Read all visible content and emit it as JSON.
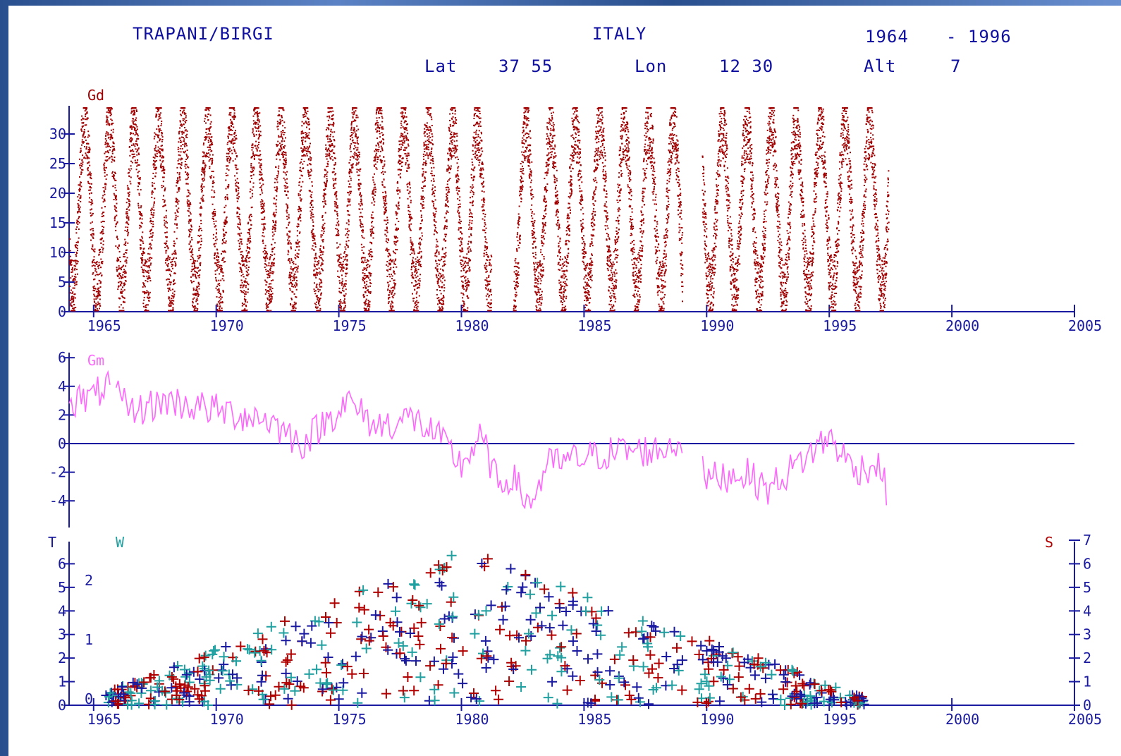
{
  "header": {
    "station": "TRAPANI/BIRGI",
    "country": "ITALY",
    "year_start": "1964",
    "year_end": "- 1996",
    "lat_label": "Lat",
    "lat_value": "37 55",
    "lon_label": "Lon",
    "lon_value": "12 30",
    "alt_label": "Alt",
    "alt_value": "7"
  },
  "colors": {
    "axis": "#1a1aa0",
    "gd": "#a00000",
    "gm": "#ff66ff",
    "t_blue": "#1a1aa0",
    "t_red": "#b00000",
    "t_teal": "#20a0a0"
  },
  "chart_data": [
    {
      "type": "scatter",
      "series": [
        {
          "name": "Gd"
        }
      ],
      "x_range": [
        1964,
        2005
      ],
      "ylim": [
        0,
        35
      ],
      "y_ticks": [
        0,
        5,
        10,
        15,
        20,
        25,
        30
      ],
      "x_ticks": [
        1965,
        1970,
        1975,
        1980,
        1985,
        1990,
        1995,
        2000,
        2005
      ],
      "data_years": [
        1964,
        1997.4
      ],
      "gaps": [
        [
          1981.2,
          1982.1
        ],
        [
          1989.0,
          1989.8
        ]
      ],
      "seasonal_min": 3,
      "seasonal_max": 32
    },
    {
      "type": "line",
      "series": [
        {
          "name": "Gm"
        }
      ],
      "x_range": [
        1964,
        2005
      ],
      "ylim": [
        -5,
        6.5
      ],
      "y_ticks": [
        -4,
        -2,
        0,
        2,
        4,
        6
      ],
      "anchors": [
        [
          1964.0,
          3.0
        ],
        [
          1965.0,
          3.2
        ],
        [
          1965.5,
          4.2
        ],
        [
          1966.5,
          2.2
        ],
        [
          1968.0,
          3.0
        ],
        [
          1969.5,
          2.5
        ],
        [
          1971.0,
          2.0
        ],
        [
          1972.0,
          1.8
        ],
        [
          1973.5,
          0.0
        ],
        [
          1974.5,
          1.6
        ],
        [
          1975.3,
          3.0
        ],
        [
          1976.5,
          1.2
        ],
        [
          1978.0,
          1.8
        ],
        [
          1979.0,
          0.5
        ],
        [
          1980.0,
          -1.5
        ],
        [
          1980.8,
          0.5
        ],
        [
          1981.5,
          -3.0
        ],
        [
          1982.0,
          -2.2
        ],
        [
          1982.8,
          -4.3
        ],
        [
          1983.5,
          -1.5
        ],
        [
          1985.0,
          -1.0
        ],
        [
          1986.5,
          -0.5
        ],
        [
          1988.0,
          -0.5
        ],
        [
          1989.0,
          0.3
        ],
        [
          1990.0,
          -2.5
        ],
        [
          1991.5,
          -2.0
        ],
        [
          1992.5,
          -3.2
        ],
        [
          1994.0,
          -1.0
        ],
        [
          1995.0,
          0.5
        ],
        [
          1996.0,
          -1.8
        ],
        [
          1997.0,
          -1.5
        ],
        [
          1997.4,
          -3.5
        ]
      ],
      "gaps": [
        [
          1965.7,
          1965.9
        ],
        [
          1989.0,
          1989.8
        ]
      ]
    },
    {
      "type": "scatter",
      "left_label": "T",
      "top_label": "W",
      "right_label": "S",
      "x_range": [
        1964,
        2005
      ],
      "ylim": [
        0,
        7
      ],
      "y_ticks_left": [
        0,
        1,
        2,
        3,
        4,
        5,
        6
      ],
      "w_ticks": [
        "0",
        "1",
        "2"
      ],
      "y_ticks_right": [
        0,
        1,
        2,
        3,
        4,
        5,
        6,
        7
      ],
      "x_ticks": [
        1965,
        1970,
        1975,
        1980,
        1985,
        1990,
        1995,
        2000,
        2005
      ],
      "marker": "+",
      "data_years": [
        1965.5,
        1996.5
      ]
    }
  ]
}
